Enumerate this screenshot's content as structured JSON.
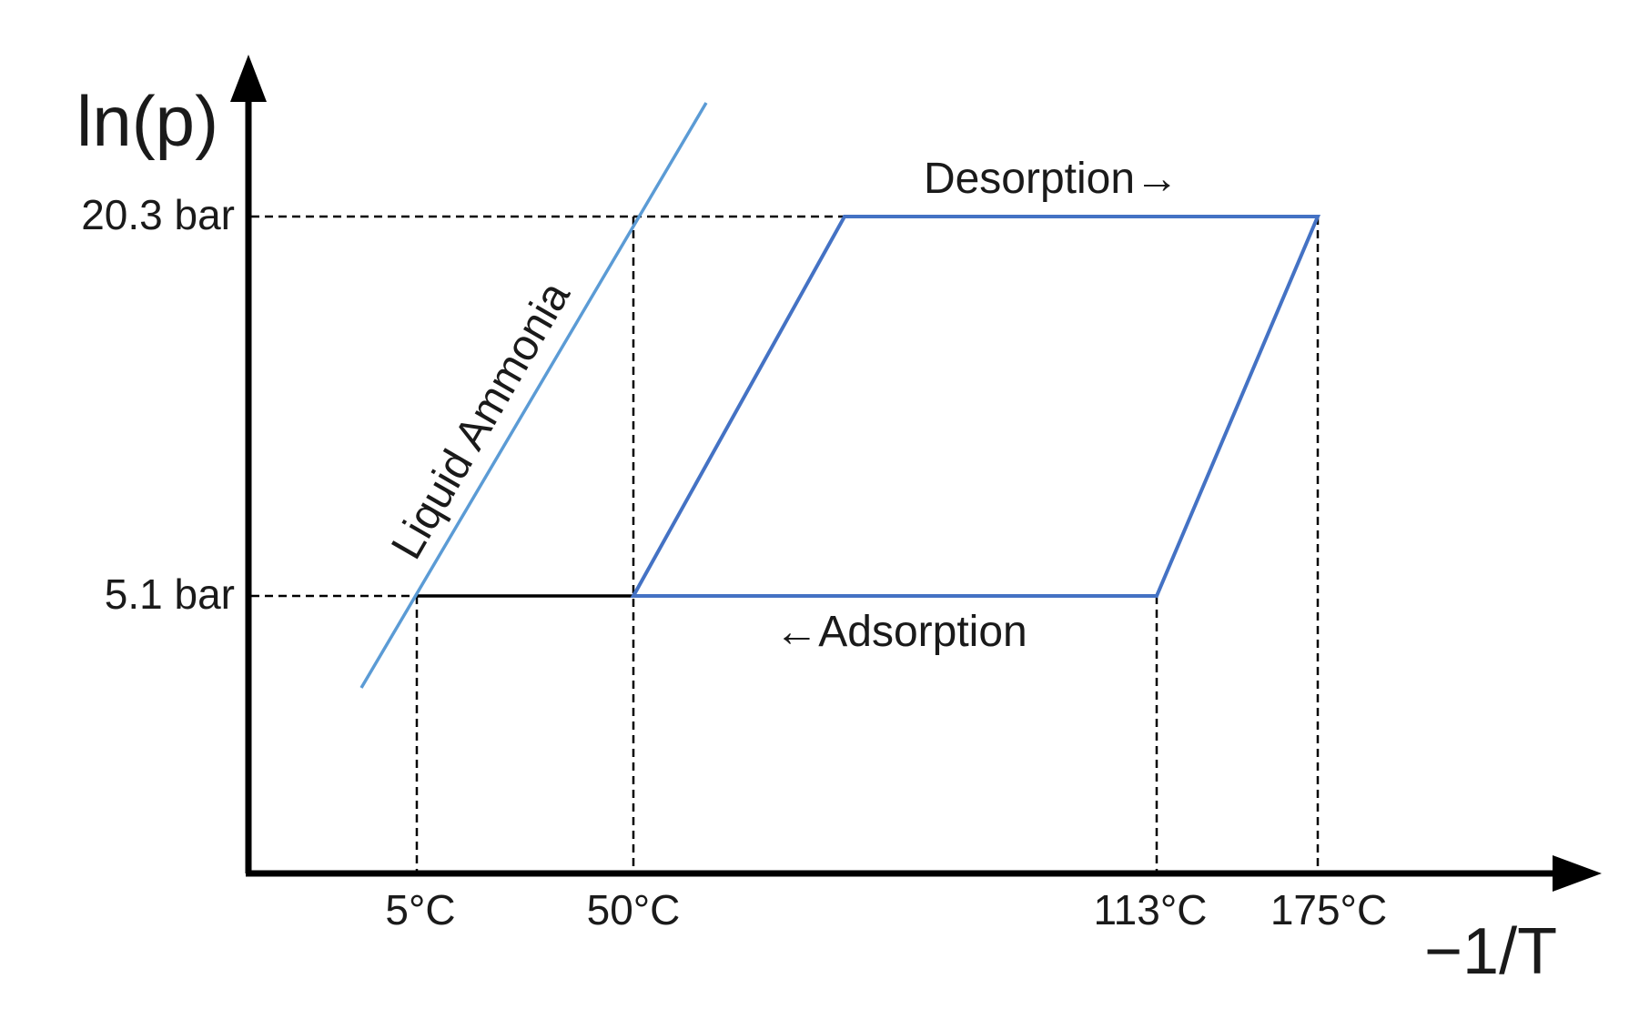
{
  "diagram": {
    "y_axis_label": "ln(p)",
    "x_axis_label": "−1/T",
    "pressure_labels": {
      "high": "20.3 bar",
      "low": "5.1 bar"
    },
    "temperature_labels": {
      "t1": "5°C",
      "t2": "50°C",
      "t3": "113°C",
      "t4": "175°C"
    },
    "line_label": "Liquid Ammonia",
    "process_labels": {
      "desorption": "Desorption→",
      "adsorption": "←Adsorption"
    },
    "colors": {
      "axis": "#000000",
      "cycle": "#4472c4",
      "liquid_line": "#5b9bd5",
      "guide": "#000000"
    }
  }
}
